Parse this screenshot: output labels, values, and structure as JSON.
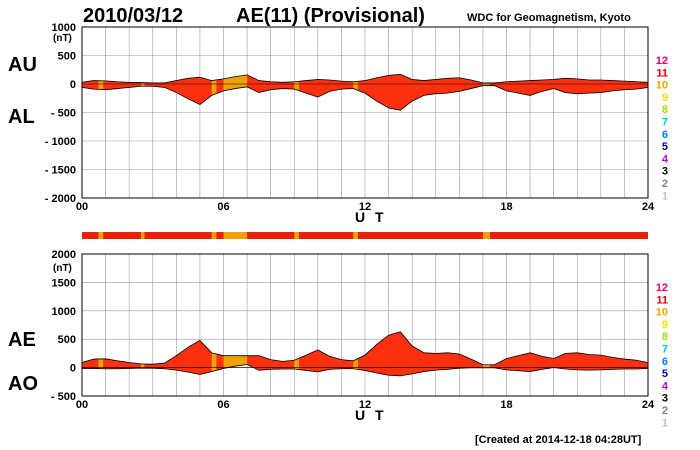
{
  "header": {
    "date": "2010/03/12",
    "title": "AE(11) (Provisional)",
    "source": "WDC for Geomagnetism, Kyoto"
  },
  "footer": {
    "created": "[Created at 2014-12-18 04:28UT]"
  },
  "x_axis_label": "U T",
  "unit_label": "(nT)",
  "legend_levels": [
    {
      "label": "12",
      "color": "#e8006e"
    },
    {
      "label": "11",
      "color": "#e00000"
    },
    {
      "label": "10",
      "color": "#f0a000"
    },
    {
      "label": "9",
      "color": "#f0e000"
    },
    {
      "label": "8",
      "color": "#a0e000"
    },
    {
      "label": "7",
      "color": "#00d0c0"
    },
    {
      "label": "6",
      "color": "#0080ff"
    },
    {
      "label": "5",
      "color": "#0000c0"
    },
    {
      "label": "4",
      "color": "#c000c0"
    },
    {
      "label": "3",
      "color": "#000000"
    },
    {
      "label": "2",
      "color": "#808080"
    },
    {
      "label": "1",
      "color": "#c0c0c0"
    }
  ],
  "station_bar": {
    "base_color": "#e82000",
    "orange_color": "#f0a000",
    "orange_hour_spans": [
      [
        0.7,
        0.9
      ],
      [
        2.5,
        2.65
      ],
      [
        5.5,
        5.7
      ],
      [
        6.0,
        7.0
      ],
      [
        9.0,
        9.2
      ],
      [
        11.5,
        11.7
      ],
      [
        17.0,
        17.3
      ]
    ]
  },
  "chart_data": [
    {
      "type": "area",
      "panel": "AU/AL",
      "upper_label": "AU",
      "lower_label": "AL",
      "xlabel": "U T",
      "x_ticks": [
        "00",
        "06",
        "12",
        "18",
        "24"
      ],
      "xlim": [
        0,
        24
      ],
      "ylim": [
        -2000,
        1000
      ],
      "y_ticks": [
        "1000",
        "500",
        "0",
        "- 500",
        "- 1000",
        "- 1500",
        "- 2000"
      ],
      "grid": true,
      "hours": [
        0,
        0.5,
        1,
        1.5,
        2,
        2.5,
        3,
        3.5,
        4,
        4.5,
        5,
        5.5,
        6,
        6.5,
        7,
        7.5,
        8,
        8.5,
        9,
        9.5,
        10,
        10.5,
        11,
        11.5,
        12,
        12.5,
        13,
        13.5,
        14,
        14.5,
        15,
        15.5,
        16,
        16.5,
        17,
        17.5,
        18,
        18.5,
        19,
        19.5,
        20,
        20.5,
        21,
        21.5,
        22,
        22.5,
        23,
        23.5,
        24
      ],
      "series": [
        {
          "name": "AU",
          "values": [
            30,
            60,
            55,
            40,
            30,
            25,
            20,
            20,
            60,
            100,
            120,
            60,
            90,
            130,
            160,
            60,
            40,
            30,
            40,
            60,
            80,
            70,
            50,
            40,
            60,
            110,
            150,
            170,
            80,
            60,
            80,
            100,
            110,
            70,
            20,
            20,
            40,
            50,
            60,
            70,
            80,
            100,
            90,
            70,
            70,
            60,
            50,
            40,
            30
          ]
        },
        {
          "name": "AL",
          "values": [
            -60,
            -90,
            -100,
            -80,
            -60,
            -40,
            -40,
            -60,
            -150,
            -260,
            -360,
            -200,
            -120,
            -80,
            -50,
            -150,
            -100,
            -80,
            -90,
            -160,
            -230,
            -130,
            -90,
            -80,
            -160,
            -300,
            -420,
            -460,
            -300,
            -200,
            -170,
            -160,
            -130,
            -80,
            -30,
            -30,
            -120,
            -160,
            -200,
            -130,
            -80,
            -150,
            -170,
            -160,
            -150,
            -120,
            -100,
            -90,
            -60
          ]
        }
      ]
    },
    {
      "type": "area",
      "panel": "AE/AO",
      "upper_label": "AE",
      "lower_label": "AO",
      "xlabel": "U T",
      "x_ticks": [
        "00",
        "06",
        "12",
        "18",
        "24"
      ],
      "xlim": [
        0,
        24
      ],
      "ylim": [
        -500,
        2000
      ],
      "y_ticks": [
        "2000",
        "1500",
        "1000",
        "500",
        "0",
        "- 500"
      ],
      "grid": true,
      "hours": [
        0,
        0.5,
        1,
        1.5,
        2,
        2.5,
        3,
        3.5,
        4,
        4.5,
        5,
        5.5,
        6,
        6.5,
        7,
        7.5,
        8,
        8.5,
        9,
        9.5,
        10,
        10.5,
        11,
        11.5,
        12,
        12.5,
        13,
        13.5,
        14,
        14.5,
        15,
        15.5,
        16,
        16.5,
        17,
        17.5,
        18,
        18.5,
        19,
        19.5,
        20,
        20.5,
        21,
        21.5,
        22,
        22.5,
        23,
        23.5,
        24
      ],
      "series": [
        {
          "name": "AE",
          "values": [
            90,
            150,
            155,
            120,
            90,
            65,
            60,
            80,
            210,
            360,
            480,
            260,
            210,
            210,
            210,
            210,
            140,
            110,
            130,
            220,
            310,
            200,
            140,
            120,
            220,
            410,
            570,
            630,
            380,
            260,
            250,
            260,
            240,
            150,
            50,
            50,
            160,
            210,
            260,
            200,
            160,
            250,
            260,
            230,
            220,
            180,
            150,
            130,
            90
          ]
        },
        {
          "name": "AO",
          "values": [
            -15,
            -15,
            -22,
            -20,
            -15,
            -8,
            -10,
            -20,
            -45,
            -80,
            -120,
            -70,
            -15,
            25,
            55,
            -45,
            -30,
            -25,
            -25,
            -50,
            -75,
            -30,
            -20,
            -20,
            -50,
            -95,
            -135,
            -145,
            -110,
            -70,
            -45,
            -30,
            -10,
            -5,
            -5,
            -5,
            -40,
            -55,
            -70,
            -30,
            0,
            -25,
            -40,
            -45,
            -40,
            -30,
            -25,
            -25,
            -15
          ]
        }
      ]
    }
  ]
}
